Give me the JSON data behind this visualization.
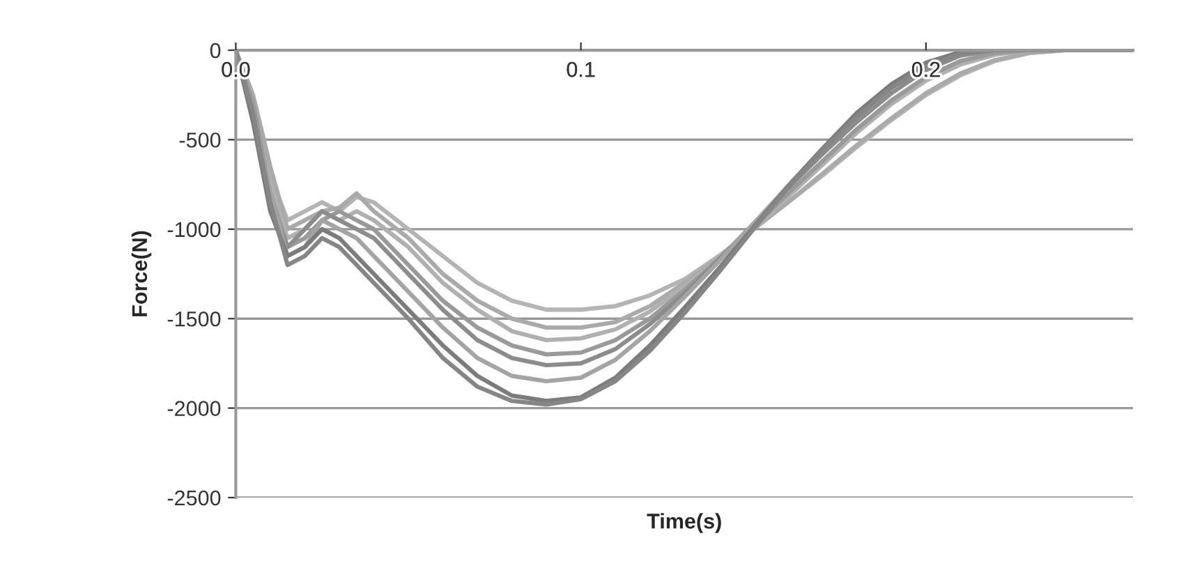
{
  "chart_data": {
    "type": "line",
    "xlabel": "Time(s)",
    "ylabel": "Force(N)",
    "x": [
      0,
      0.005,
      0.01,
      0.015,
      0.02,
      0.025,
      0.03,
      0.035,
      0.04,
      0.05,
      0.06,
      0.07,
      0.08,
      0.09,
      0.1,
      0.11,
      0.12,
      0.13,
      0.14,
      0.15,
      0.16,
      0.17,
      0.18,
      0.19,
      0.2,
      0.21,
      0.22,
      0.23,
      0.24,
      0.25,
      0.26
    ],
    "xlim": [
      0,
      0.26
    ],
    "xticks": [
      {
        "value": 0,
        "label": "0.0"
      },
      0.1,
      0.2
    ],
    "ylim": [
      -2500,
      0
    ],
    "yticks": [
      -2500,
      -2000,
      -1500,
      -1000,
      -500,
      0
    ],
    "grid": "y",
    "marker": "none",
    "line_style": "solid",
    "series": [
      {
        "color": "#b4b4b4",
        "values": [
          0,
          -300,
          -700,
          -950,
          -900,
          -850,
          -900,
          -820,
          -850,
          -1000,
          -1150,
          -1300,
          -1400,
          -1450,
          -1450,
          -1430,
          -1370,
          -1280,
          -1150,
          -1000,
          -850,
          -700,
          -540,
          -390,
          -250,
          -140,
          -60,
          -15,
          0,
          0,
          0
        ]
      },
      {
        "color": "#aaaaaa",
        "values": [
          0,
          -250,
          -650,
          -1000,
          -950,
          -900,
          -880,
          -800,
          -900,
          -1050,
          -1250,
          -1400,
          -1500,
          -1550,
          -1550,
          -1520,
          -1430,
          -1300,
          -1160,
          -1000,
          -850,
          -690,
          -530,
          -380,
          -240,
          -130,
          -55,
          -15,
          0,
          0,
          0
        ]
      },
      {
        "color": "#b0b0b0",
        "values": [
          0,
          -350,
          -750,
          -1050,
          -1000,
          -900,
          -950,
          -900,
          -950,
          -1100,
          -1300,
          -1450,
          -1570,
          -1620,
          -1610,
          -1560,
          -1460,
          -1320,
          -1170,
          -1000,
          -820,
          -640,
          -460,
          -300,
          -170,
          -80,
          -25,
          0,
          0,
          0,
          0
        ]
      },
      {
        "color": "#9a9a9a",
        "values": [
          0,
          -300,
          -800,
          -1100,
          -1050,
          -950,
          -900,
          -950,
          -1000,
          -1200,
          -1400,
          -1550,
          -1650,
          -1700,
          -1690,
          -1620,
          -1500,
          -1340,
          -1170,
          -990,
          -800,
          -620,
          -440,
          -280,
          -150,
          -60,
          -15,
          0,
          0,
          0,
          0
        ]
      },
      {
        "color": "#8c8c8c",
        "values": [
          0,
          -400,
          -850,
          -1100,
          -1000,
          -900,
          -950,
          -1000,
          -1050,
          -1250,
          -1450,
          -1620,
          -1720,
          -1760,
          -1750,
          -1670,
          -1530,
          -1360,
          -1170,
          -970,
          -770,
          -580,
          -400,
          -240,
          -110,
          -30,
          0,
          0,
          0,
          0,
          0
        ]
      },
      {
        "color": "#a4a4a4",
        "values": [
          0,
          -350,
          -800,
          -1150,
          -1100,
          -950,
          -1000,
          -1050,
          -1150,
          -1350,
          -1550,
          -1720,
          -1820,
          -1850,
          -1830,
          -1730,
          -1570,
          -1380,
          -1180,
          -970,
          -760,
          -560,
          -370,
          -210,
          -90,
          -20,
          0,
          0,
          0,
          0,
          0
        ]
      },
      {
        "color": "#7c7c7c",
        "values": [
          0,
          -400,
          -900,
          -1150,
          -1100,
          -1000,
          -1050,
          -1150,
          -1250,
          -1450,
          -1650,
          -1820,
          -1930,
          -1960,
          -1940,
          -1830,
          -1650,
          -1440,
          -1220,
          -990,
          -760,
          -550,
          -350,
          -190,
          -70,
          -10,
          0,
          0,
          0,
          0,
          0
        ]
      },
      {
        "color": "#868686",
        "values": [
          0,
          -350,
          -850,
          -1200,
          -1150,
          -1050,
          -1100,
          -1200,
          -1300,
          -1500,
          -1720,
          -1880,
          -1960,
          -1980,
          -1950,
          -1850,
          -1680,
          -1470,
          -1240,
          -1000,
          -770,
          -560,
          -370,
          -210,
          -90,
          -20,
          0,
          0,
          0,
          0,
          0
        ]
      }
    ]
  }
}
